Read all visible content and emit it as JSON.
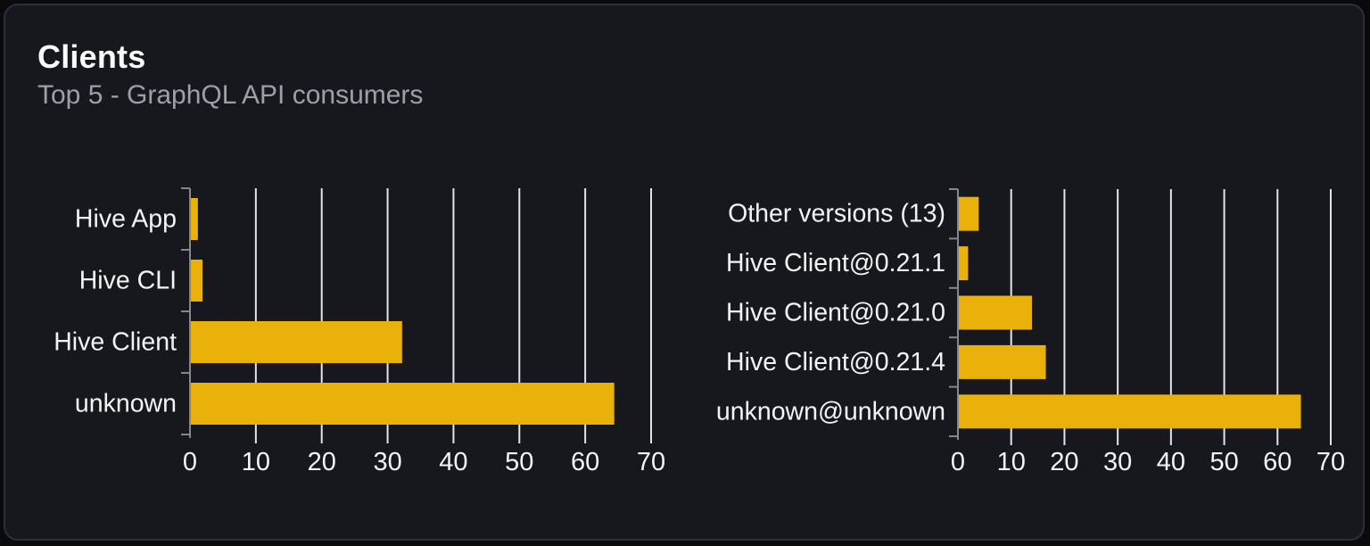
{
  "page": {
    "background": "#0a0a0c"
  },
  "card": {
    "title": "Clients",
    "subtitle": "Top 5 - GraphQL API consumers",
    "background": "#16181d",
    "border_color": "#2c2f36"
  },
  "colors": {
    "bar": "#e9b10a",
    "gridline": "#dfe4ee",
    "axis": "#84878e",
    "chart_text": "#f2f3f5",
    "title_text": "#fafafa",
    "subtitle_text": "#9aa1ac"
  },
  "chart_data": [
    {
      "type": "bar",
      "orientation": "horizontal",
      "categories": [
        "Hive App",
        "Hive CLI",
        "Hive Client",
        "unknown"
      ],
      "values": [
        1.2,
        1.9,
        32.2,
        64.4
      ],
      "xticks": [
        0,
        10,
        20,
        30,
        40,
        50,
        60,
        70
      ],
      "xlim": [
        0,
        70
      ],
      "grid": true,
      "legend": false,
      "bar_color": "#e9b10a"
    },
    {
      "type": "bar",
      "orientation": "horizontal",
      "categories": [
        "Other versions (13)",
        "Hive Client@0.21.1",
        "Hive Client@0.21.0",
        "Hive Client@0.21.4",
        "unknown@unknown"
      ],
      "values": [
        3.9,
        1.9,
        13.9,
        16.5,
        64.4
      ],
      "xticks": [
        0,
        10,
        20,
        30,
        40,
        50,
        60,
        70
      ],
      "xlim": [
        0,
        70
      ],
      "grid": true,
      "legend": false,
      "bar_color": "#e9b10a"
    }
  ]
}
